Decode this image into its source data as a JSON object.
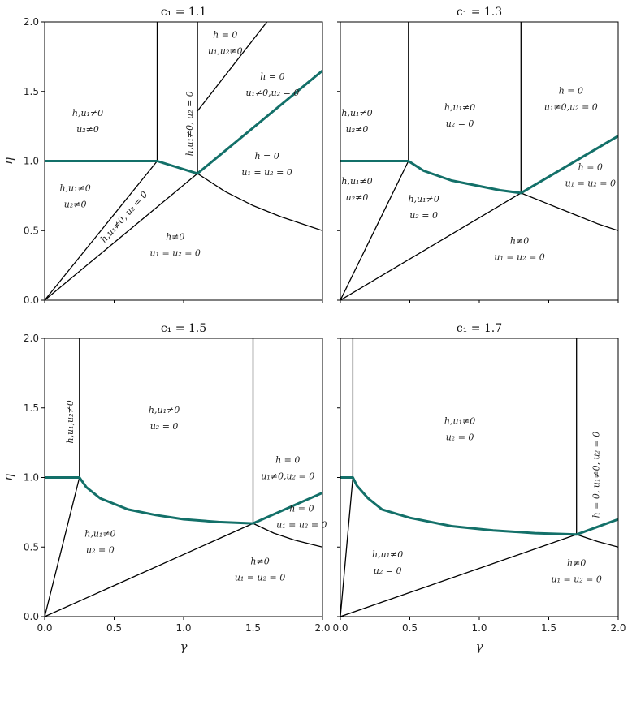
{
  "colors": {
    "boundary": "#000000",
    "highlight": "#137069"
  },
  "chart_data": [
    {
      "type": "line",
      "title": "c₁ = 1.1",
      "xlabel": "",
      "ylabel": "η",
      "xlim": [
        0,
        2
      ],
      "ylim": [
        0,
        2
      ],
      "xticks": [
        "0.0",
        "0.5",
        "1.0",
        "1.5",
        "2.0"
      ],
      "yticks": [
        "0.0",
        "0.5",
        "1.0",
        "1.5",
        "2.0"
      ],
      "show_xticklabels": false,
      "show_yticklabels": true,
      "series": [
        {
          "style": "boundary",
          "points": [
            [
              0.81,
              1.0
            ],
            [
              0.81,
              2.0
            ]
          ]
        },
        {
          "style": "boundary",
          "points": [
            [
              1.1,
              0.91
            ],
            [
              1.1,
              2.0
            ]
          ]
        },
        {
          "style": "boundary",
          "points": [
            [
              1.1,
              1.36
            ],
            [
              1.6,
              2.0
            ]
          ]
        },
        {
          "style": "boundary",
          "points": [
            [
              0,
              0
            ],
            [
              0.81,
              1.0
            ]
          ]
        },
        {
          "style": "boundary",
          "points": [
            [
              0,
              0
            ],
            [
              1.1,
              0.91
            ]
          ]
        },
        {
          "style": "boundary",
          "points": [
            [
              1.1,
              0.91
            ],
            [
              1.3,
              0.78
            ],
            [
              1.5,
              0.68
            ],
            [
              1.7,
              0.6
            ],
            [
              1.85,
              0.55
            ],
            [
              2.0,
              0.5
            ]
          ]
        },
        {
          "style": "highlight",
          "points": [
            [
              0,
              1.0
            ],
            [
              0.81,
              1.0
            ],
            [
              1.1,
              0.91
            ],
            [
              2.0,
              1.65
            ]
          ]
        }
      ],
      "annotations": [
        {
          "lines": [
            "h,u₁≠0",
            "u₂≠0"
          ],
          "x": 0.31,
          "y": 1.29,
          "rotate": 0
        },
        {
          "lines": [
            "h,u₁≠0",
            "u₂≠0"
          ],
          "x": 0.22,
          "y": 0.75,
          "rotate": 0
        },
        {
          "lines": [
            "h,u₁≠0, u₂ = 0"
          ],
          "x": 0.57,
          "y": 0.6,
          "rotate": -48
        },
        {
          "lines": [
            "h,u₁≠0, u₂ = 0"
          ],
          "x": 1.04,
          "y": 1.27,
          "rotate": -90
        },
        {
          "lines": [
            "h = 0",
            "u₁,u₂≠0"
          ],
          "x": 1.3,
          "y": 1.85,
          "rotate": 0
        },
        {
          "lines": [
            "h = 0",
            "u₁≠0,u₂ = 0"
          ],
          "x": 1.64,
          "y": 1.55,
          "rotate": 0
        },
        {
          "lines": [
            "h = 0",
            "u₁ = u₂ = 0"
          ],
          "x": 1.6,
          "y": 0.98,
          "rotate": 0
        },
        {
          "lines": [
            "h≠0",
            "u₁ = u₂ = 0"
          ],
          "x": 0.94,
          "y": 0.4,
          "rotate": 0
        }
      ]
    },
    {
      "type": "line",
      "title": "c₁ = 1.3",
      "xlabel": "",
      "ylabel": "",
      "xlim": [
        0,
        2
      ],
      "ylim": [
        0,
        2
      ],
      "xticks": [
        "0.0",
        "0.5",
        "1.0",
        "1.5",
        "2.0"
      ],
      "yticks": [
        "0.0",
        "0.5",
        "1.0",
        "1.5",
        "2.0"
      ],
      "show_xticklabels": false,
      "show_yticklabels": false,
      "series": [
        {
          "style": "boundary",
          "points": [
            [
              0.49,
              1.0
            ],
            [
              0.49,
              2.0
            ]
          ]
        },
        {
          "style": "boundary",
          "points": [
            [
              1.3,
              0.77
            ],
            [
              1.3,
              2.0
            ]
          ]
        },
        {
          "style": "boundary",
          "points": [
            [
              0,
              0
            ],
            [
              0.49,
              1.0
            ]
          ]
        },
        {
          "style": "boundary",
          "points": [
            [
              0,
              0
            ],
            [
              1.3,
              0.77
            ]
          ]
        },
        {
          "style": "boundary",
          "points": [
            [
              1.3,
              0.77
            ],
            [
              1.5,
              0.69
            ],
            [
              1.7,
              0.61
            ],
            [
              1.85,
              0.55
            ],
            [
              2.0,
              0.5
            ]
          ]
        },
        {
          "style": "highlight",
          "points": [
            [
              0,
              1.0
            ],
            [
              0.49,
              1.0
            ],
            [
              0.6,
              0.93
            ],
            [
              0.8,
              0.86
            ],
            [
              1.0,
              0.82
            ],
            [
              1.15,
              0.79
            ],
            [
              1.3,
              0.77
            ],
            [
              2.0,
              1.18
            ]
          ]
        }
      ],
      "annotations": [
        {
          "lines": [
            "h,u₁≠0",
            "u₂≠0"
          ],
          "x": 0.12,
          "y": 1.29,
          "rotate": 0
        },
        {
          "lines": [
            "h,u₁≠0",
            "u₂ = 0"
          ],
          "x": 0.86,
          "y": 1.33,
          "rotate": 0
        },
        {
          "lines": [
            "h = 0",
            "u₁≠0,u₂ = 0"
          ],
          "x": 1.66,
          "y": 1.45,
          "rotate": 0
        },
        {
          "lines": [
            "h,u₁≠0",
            "u₂≠0"
          ],
          "x": 0.12,
          "y": 0.8,
          "rotate": 0
        },
        {
          "lines": [
            "h,u₁≠0",
            "u₂ = 0"
          ],
          "x": 0.6,
          "y": 0.67,
          "rotate": 0
        },
        {
          "lines": [
            "h = 0",
            "u₁ = u₂ = 0"
          ],
          "x": 1.8,
          "y": 0.9,
          "rotate": 0
        },
        {
          "lines": [
            "h≠0",
            "u₁ = u₂ = 0"
          ],
          "x": 1.29,
          "y": 0.37,
          "rotate": 0
        }
      ]
    },
    {
      "type": "line",
      "title": "c₁ = 1.5",
      "xlabel": "γ",
      "ylabel": "η",
      "xlim": [
        0,
        2
      ],
      "ylim": [
        0,
        2
      ],
      "xticks": [
        "0.0",
        "0.5",
        "1.0",
        "1.5",
        "2.0"
      ],
      "yticks": [
        "0.0",
        "0.5",
        "1.0",
        "1.5",
        "2.0"
      ],
      "show_xticklabels": true,
      "show_yticklabels": true,
      "series": [
        {
          "style": "boundary",
          "points": [
            [
              0.25,
              1.0
            ],
            [
              0.25,
              2.0
            ]
          ]
        },
        {
          "style": "boundary",
          "points": [
            [
              1.5,
              0.67
            ],
            [
              1.5,
              2.0
            ]
          ]
        },
        {
          "style": "boundary",
          "points": [
            [
              0,
              0
            ],
            [
              0.25,
              1.0
            ]
          ]
        },
        {
          "style": "boundary",
          "points": [
            [
              0,
              0
            ],
            [
              1.5,
              0.67
            ]
          ]
        },
        {
          "style": "boundary",
          "points": [
            [
              1.5,
              0.67
            ],
            [
              1.65,
              0.6
            ],
            [
              1.8,
              0.55
            ],
            [
              2.0,
              0.5
            ]
          ]
        },
        {
          "style": "highlight",
          "points": [
            [
              0,
              1.0
            ],
            [
              0.25,
              1.0
            ],
            [
              0.3,
              0.93
            ],
            [
              0.4,
              0.85
            ],
            [
              0.6,
              0.77
            ],
            [
              0.8,
              0.73
            ],
            [
              1.0,
              0.7
            ],
            [
              1.25,
              0.68
            ],
            [
              1.5,
              0.67
            ],
            [
              2.0,
              0.89
            ]
          ]
        }
      ],
      "annotations": [
        {
          "lines": [
            "h,u₁,u₂≠0"
          ],
          "x": 0.18,
          "y": 1.4,
          "rotate": -90
        },
        {
          "lines": [
            "h,u₁≠0",
            "u₂ = 0"
          ],
          "x": 0.86,
          "y": 1.43,
          "rotate": 0
        },
        {
          "lines": [
            "h = 0",
            "u₁≠0,u₂ = 0"
          ],
          "x": 1.75,
          "y": 1.07,
          "rotate": 0
        },
        {
          "lines": [
            "h = 0",
            "u₁ = u₂ = 0"
          ],
          "x": 1.85,
          "y": 0.72,
          "rotate": 0
        },
        {
          "lines": [
            "h,u₁≠0",
            "u₂ = 0"
          ],
          "x": 0.4,
          "y": 0.54,
          "rotate": 0
        },
        {
          "lines": [
            "h≠0",
            "u₁ = u₂ = 0"
          ],
          "x": 1.55,
          "y": 0.34,
          "rotate": 0
        }
      ]
    },
    {
      "type": "line",
      "title": "c₁ = 1.7",
      "xlabel": "γ",
      "ylabel": "",
      "xlim": [
        0,
        2
      ],
      "ylim": [
        0,
        2
      ],
      "xticks": [
        "0.0",
        "0.5",
        "1.0",
        "1.5",
        "2.0"
      ],
      "yticks": [
        "0.0",
        "0.5",
        "1.0",
        "1.5",
        "2.0"
      ],
      "show_xticklabels": true,
      "show_yticklabels": false,
      "series": [
        {
          "style": "boundary",
          "points": [
            [
              0.09,
              1.0
            ],
            [
              0.09,
              2.0
            ]
          ]
        },
        {
          "style": "boundary",
          "points": [
            [
              1.7,
              0.59
            ],
            [
              1.7,
              2.0
            ]
          ]
        },
        {
          "style": "boundary",
          "points": [
            [
              0,
              0
            ],
            [
              0.09,
              1.0
            ]
          ]
        },
        {
          "style": "boundary",
          "points": [
            [
              0,
              0
            ],
            [
              1.7,
              0.59
            ]
          ]
        },
        {
          "style": "boundary",
          "points": [
            [
              1.7,
              0.59
            ],
            [
              1.85,
              0.54
            ],
            [
              2.0,
              0.5
            ]
          ]
        },
        {
          "style": "highlight",
          "points": [
            [
              0,
              1.0
            ],
            [
              0.09,
              1.0
            ],
            [
              0.12,
              0.94
            ],
            [
              0.2,
              0.85
            ],
            [
              0.3,
              0.77
            ],
            [
              0.5,
              0.71
            ],
            [
              0.8,
              0.65
            ],
            [
              1.1,
              0.62
            ],
            [
              1.4,
              0.6
            ],
            [
              1.7,
              0.59
            ],
            [
              2.0,
              0.7
            ]
          ]
        }
      ],
      "annotations": [
        {
          "lines": [
            "h,u₁≠0",
            "u₂ = 0"
          ],
          "x": 0.86,
          "y": 1.35,
          "rotate": 0
        },
        {
          "lines": [
            "h = 0, u₁≠0, u₂ = 0"
          ],
          "x": 1.84,
          "y": 1.02,
          "rotate": -90
        },
        {
          "lines": [
            "h,u₁≠0",
            "u₂ = 0"
          ],
          "x": 0.34,
          "y": 0.39,
          "rotate": 0
        },
        {
          "lines": [
            "h≠0",
            "u₁ = u₂ = 0"
          ],
          "x": 1.7,
          "y": 0.33,
          "rotate": 0
        }
      ]
    }
  ]
}
